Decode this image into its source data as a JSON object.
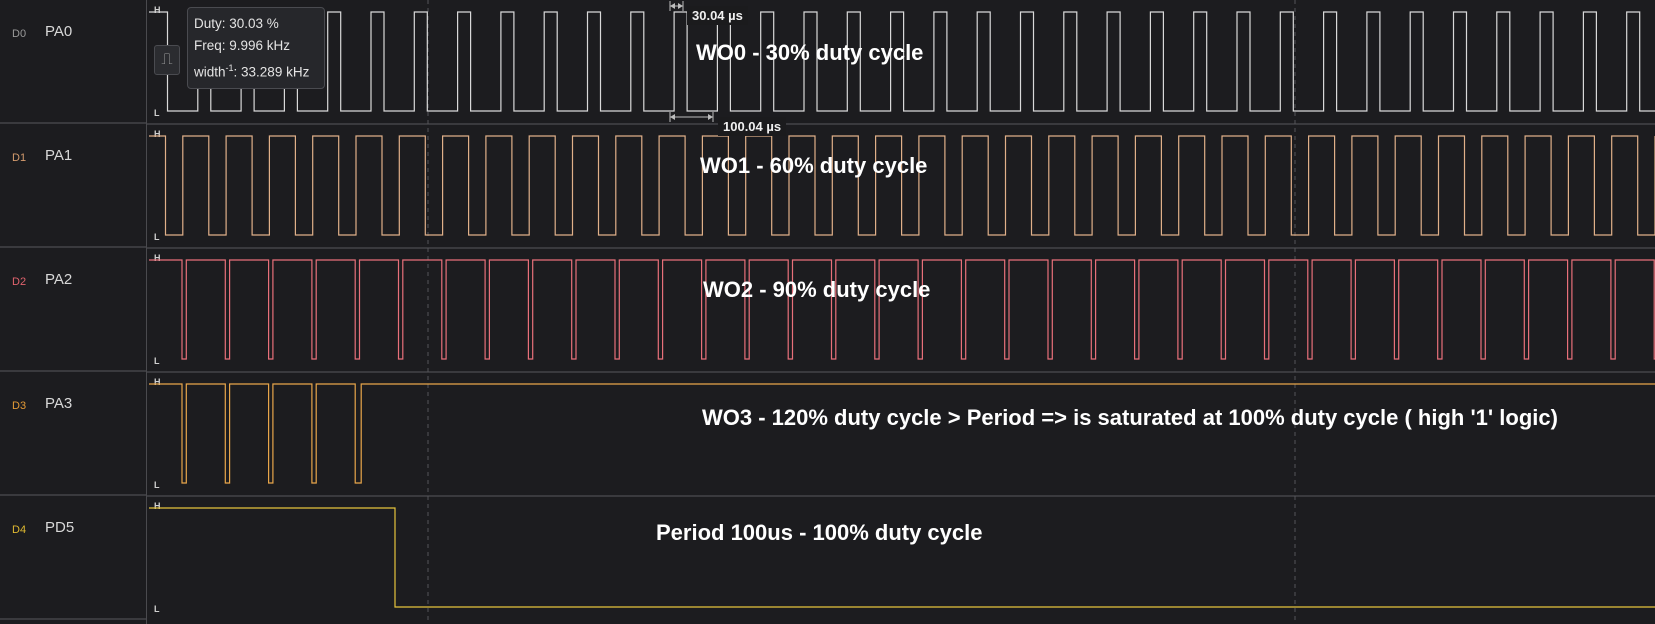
{
  "channels": [
    {
      "id": "D0",
      "name": "PA0",
      "color": "#d9d9d9",
      "id_color": "#9a9a9a",
      "annotation": "WO0 - 30% duty cycle"
    },
    {
      "id": "D1",
      "name": "PA1",
      "color": "#e0b089",
      "id_color": "#d59c6e",
      "annotation": "WO1 - 60% duty cycle"
    },
    {
      "id": "D2",
      "name": "PA2",
      "color": "#e8707a",
      "id_color": "#e0636d",
      "annotation": "WO2 - 90% duty cycle"
    },
    {
      "id": "D3",
      "name": "PA3",
      "color": "#e8a64a",
      "id_color": "#e39a36",
      "annotation": "WO3 - 120% duty cycle > Period => is saturated at 100% duty cycle ( high '1' logic)"
    },
    {
      "id": "D4",
      "name": "PD5",
      "color": "#e6c43c",
      "id_color": "#dfb930",
      "annotation": "Period 100us - 100% duty cycle"
    }
  ],
  "level_labels": {
    "high": "H",
    "low": "L"
  },
  "tooltip": {
    "duty": "Duty: 30.03 %",
    "freq": "Freq: 9.996 kHz",
    "width_prefix": "width",
    "width_exp": "-1",
    "width_suffix": ": 33.289 kHz"
  },
  "measurements": {
    "pulse_width": "30.04 µs",
    "period": "100.04 µs"
  },
  "tool_icon": "pulse-measure-icon"
}
